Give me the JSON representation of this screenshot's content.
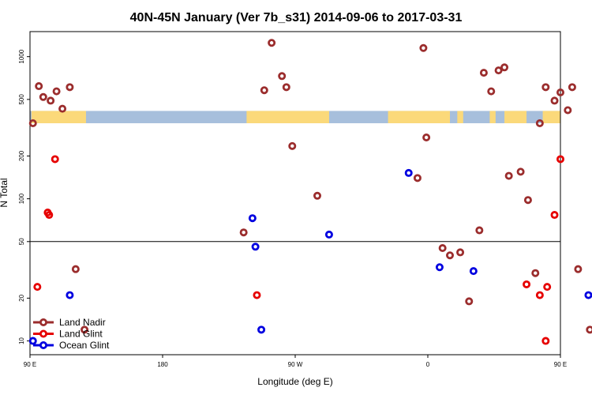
{
  "chart_data": {
    "type": "scatter",
    "title": "40N-45N January (Ver 7b_s31)   2014-09-06 to 2017-03-31",
    "xlabel": "Longitude (deg E)",
    "ylabel": "N Total",
    "x_scale": "linear",
    "y_scale": "log",
    "xlim": [
      90,
      450
    ],
    "ylim": [
      8,
      1500
    ],
    "x_ticks": [
      {
        "value": 90,
        "label": "90 E"
      },
      {
        "value": 180,
        "label": "180"
      },
      {
        "value": 270,
        "label": "90 W"
      },
      {
        "value": 360,
        "label": "0"
      },
      {
        "value": 450,
        "label": "90 E"
      },
      {
        "value": 540,
        "label": "180"
      }
    ],
    "y_ticks": [
      {
        "value": 10,
        "label": "10"
      },
      {
        "value": 20,
        "label": "20"
      },
      {
        "value": 50,
        "label": "50"
      },
      {
        "value": 100,
        "label": "100"
      },
      {
        "value": 200,
        "label": "200"
      },
      {
        "value": 500,
        "label": "500"
      },
      {
        "value": 1000,
        "label": "1000"
      }
    ],
    "reference_line_y": 50,
    "map_strip": {
      "y_range": [
        340,
        415
      ],
      "ocean_color": "#a7bfdc",
      "land_color": "#fbd97a",
      "land_segments": [
        [
          91,
          128
        ],
        [
          237,
          293
        ],
        [
          333,
          375
        ],
        [
          380,
          384
        ],
        [
          402,
          406
        ],
        [
          412,
          427
        ],
        [
          438,
          466
        ],
        [
          514,
          526
        ]
      ]
    },
    "legend_position": "bottom-left",
    "series": [
      {
        "name": "Land Nadir",
        "color": "#9b2d2d",
        "points": [
          [
            92,
            340
          ],
          [
            96,
            620
          ],
          [
            99,
            520
          ],
          [
            104,
            490
          ],
          [
            108,
            570
          ],
          [
            112,
            430
          ],
          [
            117,
            610
          ],
          [
            121,
            32
          ],
          [
            127,
            12
          ],
          [
            235,
            58
          ],
          [
            249,
            580
          ],
          [
            254,
            1250
          ],
          [
            261,
            730
          ],
          [
            264,
            610
          ],
          [
            268,
            235
          ],
          [
            285,
            105
          ],
          [
            357,
            1150
          ],
          [
            359,
            270
          ],
          [
            353,
            140
          ],
          [
            370,
            45
          ],
          [
            375,
            40
          ],
          [
            382,
            42
          ],
          [
            388,
            19
          ],
          [
            395,
            60
          ],
          [
            398,
            770
          ],
          [
            403,
            570
          ],
          [
            408,
            800
          ],
          [
            412,
            840
          ],
          [
            415,
            145
          ],
          [
            423,
            155
          ],
          [
            428,
            98
          ],
          [
            433,
            30
          ],
          [
            436,
            340
          ],
          [
            440,
            610
          ],
          [
            446,
            490
          ],
          [
            450,
            560
          ],
          [
            455,
            420
          ],
          [
            458,
            610
          ],
          [
            462,
            32
          ],
          [
            470,
            12
          ]
        ]
      },
      {
        "name": "Land Glint",
        "color": "#e60000",
        "points": [
          [
            95,
            24
          ],
          [
            102,
            80
          ],
          [
            103,
            77
          ],
          [
            107,
            190
          ],
          [
            244,
            21
          ],
          [
            427,
            25
          ],
          [
            436,
            21
          ],
          [
            440,
            10
          ],
          [
            441,
            24
          ],
          [
            446,
            77
          ],
          [
            450,
            190
          ]
        ]
      },
      {
        "name": "Ocean Glint",
        "color": "#0000e0",
        "points": [
          [
            92,
            10
          ],
          [
            117,
            21
          ],
          [
            241,
            73
          ],
          [
            243,
            46
          ],
          [
            247,
            12
          ],
          [
            293,
            56
          ],
          [
            347,
            152
          ],
          [
            368,
            33
          ],
          [
            391,
            31
          ],
          [
            469,
            21
          ]
        ]
      }
    ]
  }
}
